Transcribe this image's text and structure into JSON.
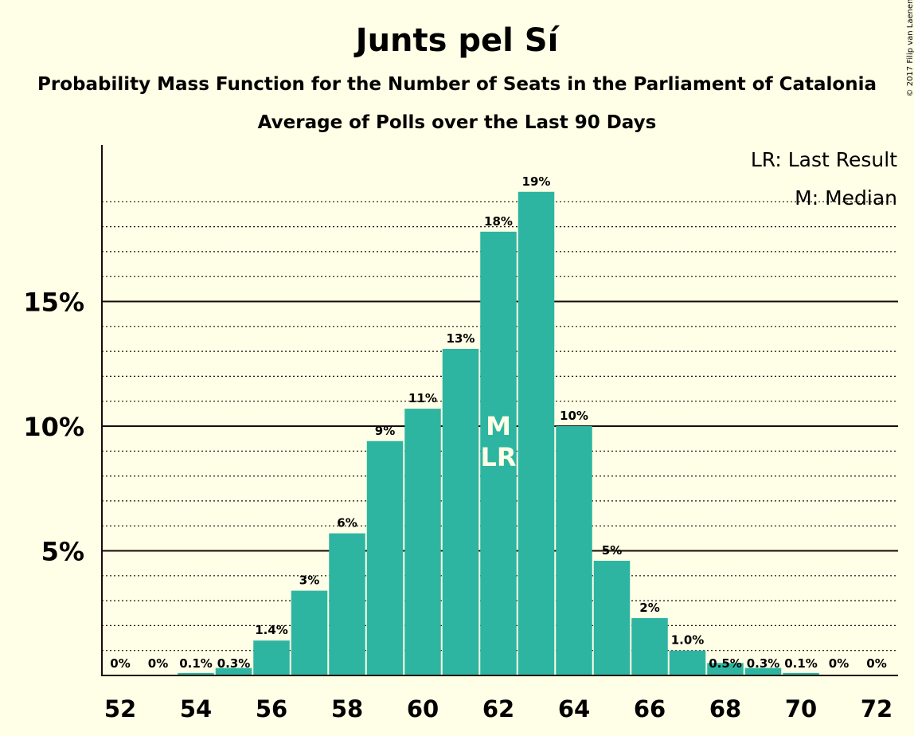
{
  "chart_data": {
    "type": "bar",
    "title": "Junts pel Sí",
    "subtitle": "Probability Mass Function for the Number of Seats in the Parliament of Catalonia",
    "subtitle2": "Average of Polls over the Last 90 Days",
    "copyright": "© 2017 Filip van Laenen",
    "legend": [
      "LR: Last Result",
      "M: Median"
    ],
    "legend_position": "top-right",
    "x": [
      52,
      53,
      54,
      55,
      56,
      57,
      58,
      59,
      60,
      61,
      62,
      63,
      64,
      65,
      66,
      67,
      68,
      69,
      70,
      71,
      72
    ],
    "values": [
      0,
      0,
      0.1,
      0.3,
      1.4,
      3.4,
      5.7,
      9.4,
      10.7,
      13.1,
      17.8,
      19.4,
      10.0,
      4.6,
      2.3,
      1.0,
      0.5,
      0.3,
      0.1,
      0,
      0
    ],
    "labels": [
      "0%",
      "0%",
      "0.1%",
      "0.3%",
      "1.4%",
      "3%",
      "6%",
      "9%",
      "11%",
      "13%",
      "18%",
      "19%",
      "10%",
      "5%",
      "2%",
      "1.0%",
      "0.5%",
      "0.3%",
      "0.1%",
      "0%",
      "0%"
    ],
    "x_tick_labels": [
      "52",
      "54",
      "56",
      "58",
      "60",
      "62",
      "64",
      "66",
      "68",
      "70",
      "72"
    ],
    "y_ticks": [
      5,
      10,
      15
    ],
    "y_tick_labels": [
      "5%",
      "10%",
      "15%"
    ],
    "ylim": [
      0,
      21
    ],
    "median_seat": 62,
    "median_marker": "M",
    "last_result_seat": 62,
    "last_result_marker": "LR",
    "bar_color": "#2DB5A1"
  }
}
